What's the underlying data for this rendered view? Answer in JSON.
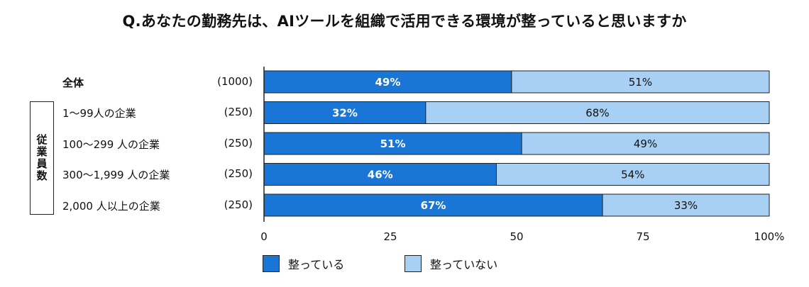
{
  "title": "Q.あなたの勤務先は、AIツールを組織で活用できる環境が整っていると思いますか",
  "group_label": "従業員数",
  "legend": [
    {
      "label": "整っている",
      "color": "#1976d6"
    },
    {
      "label": "整っていない",
      "color": "#a8d0f5"
    }
  ],
  "chart_data": {
    "type": "bar",
    "orientation": "horizontal",
    "stacked": true,
    "categories": [
      "全体",
      "1〜99人の企業",
      "100〜299 人の企業",
      "300〜1,999 人の企業",
      "2,000 人以上の企業"
    ],
    "sample_sizes": [
      "(1000)",
      "(250)",
      "(250)",
      "(250)",
      "(250)"
    ],
    "series": [
      {
        "name": "整っている",
        "values": [
          49,
          32,
          51,
          46,
          67
        ],
        "color": "#1976d6"
      },
      {
        "name": "整っていない",
        "values": [
          51,
          68,
          49,
          54,
          33
        ],
        "color": "#a8d0f5"
      }
    ],
    "xlim": [
      0,
      100
    ],
    "xticks": [
      0,
      25,
      50,
      75,
      100
    ],
    "xtick_labels": [
      "0",
      "25",
      "50",
      "75",
      "100%"
    ],
    "legend_position": "bottom-left",
    "grid": false
  }
}
